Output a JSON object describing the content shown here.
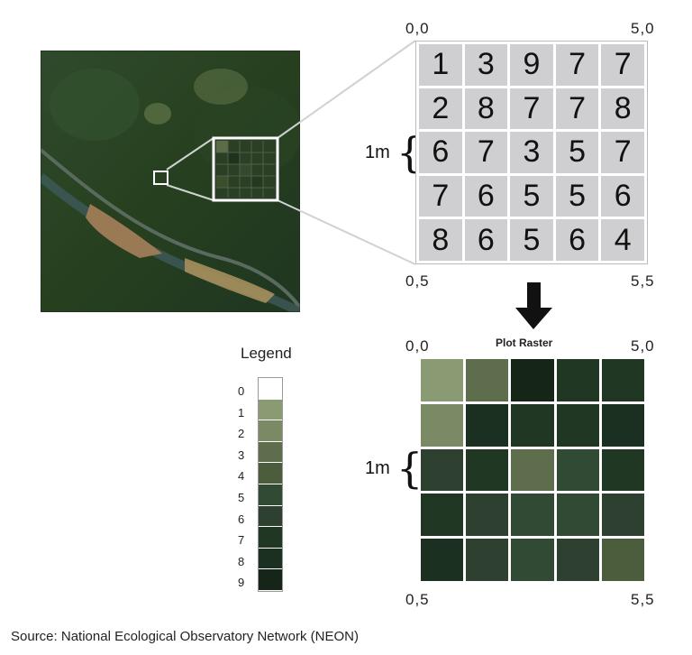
{
  "top_grid": {
    "corner_tl": "0,0",
    "corner_tr": "5,0",
    "corner_bl": "0,5",
    "corner_br": "5,5",
    "scale_label": "1m",
    "values": [
      [
        1,
        3,
        9,
        7,
        7
      ],
      [
        2,
        8,
        7,
        7,
        8
      ],
      [
        6,
        7,
        3,
        5,
        7
      ],
      [
        7,
        6,
        5,
        5,
        6
      ],
      [
        8,
        6,
        5,
        6,
        4
      ]
    ]
  },
  "plot_raster": {
    "title": "Plot Raster",
    "corner_tl": "0,0",
    "corner_tr": "5,0",
    "corner_bl": "0,5",
    "corner_br": "5,5",
    "scale_label": "1m",
    "values": [
      [
        1,
        3,
        9,
        7,
        7
      ],
      [
        2,
        8,
        7,
        7,
        8
      ],
      [
        6,
        7,
        3,
        5,
        7
      ],
      [
        7,
        6,
        5,
        5,
        6
      ],
      [
        8,
        6,
        5,
        6,
        4
      ]
    ]
  },
  "legend": {
    "title": "Legend",
    "items": [
      {
        "label": "0",
        "color": "#ffffff"
      },
      {
        "label": "1",
        "color": "#8a9a72"
      },
      {
        "label": "2",
        "color": "#7a8a64"
      },
      {
        "label": "3",
        "color": "#5e6e4c"
      },
      {
        "label": "4",
        "color": "#4c5d3e"
      },
      {
        "label": "5",
        "color": "#314a33"
      },
      {
        "label": "6",
        "color": "#2e4030"
      },
      {
        "label": "7",
        "color": "#203823"
      },
      {
        "label": "8",
        "color": "#1b3020"
      },
      {
        "label": "9",
        "color": "#152518"
      }
    ]
  },
  "source": "Source: National Ecological Observatory Network (NEON)"
}
